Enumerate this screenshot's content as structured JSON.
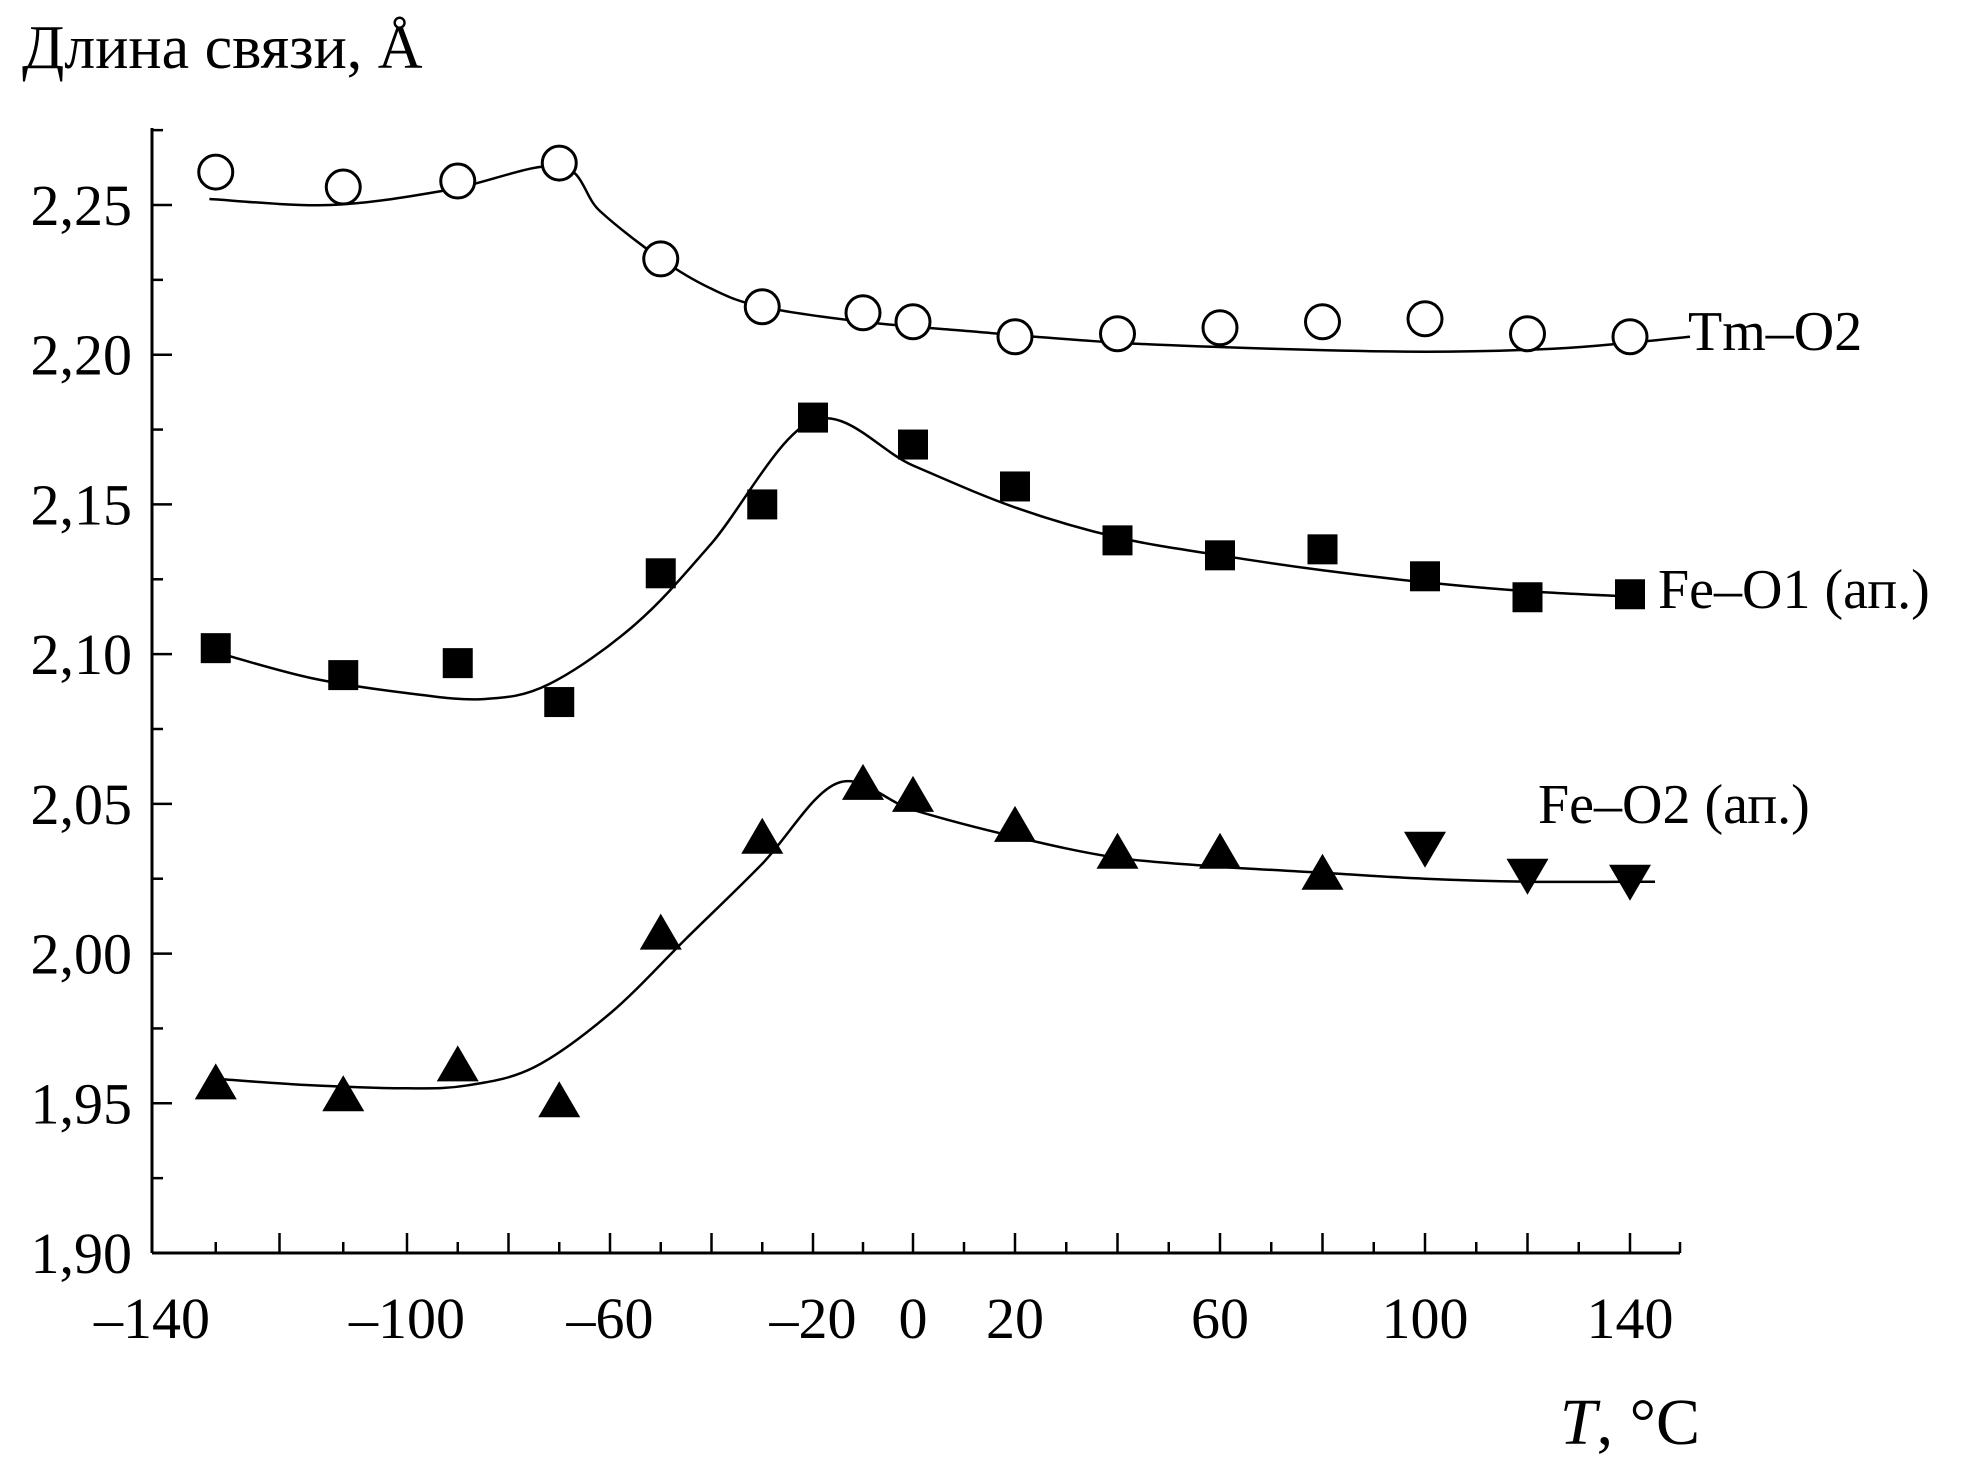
{
  "chart_data": {
    "type": "scatter",
    "ylabel": "Длина связи, Å",
    "xlabel_italic": "T",
    "xlabel_unit": ", °С",
    "xlim": [
      -140,
      150
    ],
    "ylim": [
      1.9,
      2.28
    ],
    "x_ticks": [
      -140,
      -100,
      -60,
      -20,
      0,
      20,
      60,
      100,
      140
    ],
    "x_tick_labels": [
      "–140",
      "–100",
      "–60",
      "–20",
      "0",
      "20",
      "60",
      "100",
      "140"
    ],
    "y_ticks": [
      1.9,
      1.95,
      2.0,
      2.05,
      2.1,
      2.15,
      2.2,
      2.25
    ],
    "y_tick_labels": [
      "1,90",
      "1,95",
      "2,00",
      "2,05",
      "2,10",
      "2,15",
      "2,20",
      "2,25"
    ],
    "grid": false,
    "series": [
      {
        "name": "Tm–O2",
        "marker": "open-circle",
        "points": [
          [
            -130,
            2.261
          ],
          [
            -110,
            2.256
          ],
          [
            -90,
            2.258
          ],
          [
            -70,
            2.264
          ],
          [
            -50,
            2.232
          ],
          [
            -30,
            2.216
          ],
          [
            -10,
            2.214
          ],
          [
            0,
            2.211
          ],
          [
            20,
            2.206
          ],
          [
            40,
            2.207
          ],
          [
            60,
            2.209
          ],
          [
            80,
            2.211
          ],
          [
            100,
            2.212
          ],
          [
            120,
            2.207
          ],
          [
            140,
            2.206
          ]
        ],
        "fit": [
          [
            -131,
            2.252
          ],
          [
            -112,
            2.25
          ],
          [
            -92,
            2.255
          ],
          [
            -70,
            2.263
          ],
          [
            -62,
            2.248
          ],
          [
            -50,
            2.232
          ],
          [
            -40,
            2.222
          ],
          [
            -30,
            2.216
          ],
          [
            -10,
            2.211
          ],
          [
            10,
            2.208
          ],
          [
            40,
            2.204
          ],
          [
            70,
            2.202
          ],
          [
            100,
            2.201
          ],
          [
            125,
            2.202
          ],
          [
            140,
            2.204
          ],
          [
            152,
            2.206
          ]
        ]
      },
      {
        "name": "Fe–O1 (ап.)",
        "marker": "filled-square",
        "points": [
          [
            -130,
            2.102
          ],
          [
            -110,
            2.093
          ],
          [
            -90,
            2.097
          ],
          [
            -70,
            2.084
          ],
          [
            -50,
            2.127
          ],
          [
            -30,
            2.15
          ],
          [
            -20,
            2.179
          ],
          [
            0,
            2.17
          ],
          [
            20,
            2.156
          ],
          [
            40,
            2.138
          ],
          [
            60,
            2.133
          ],
          [
            80,
            2.135
          ],
          [
            100,
            2.126
          ],
          [
            120,
            2.119
          ],
          [
            140,
            2.12
          ]
        ],
        "fit": [
          [
            -129,
            2.1
          ],
          [
            -115,
            2.092
          ],
          [
            -100,
            2.087
          ],
          [
            -85,
            2.085
          ],
          [
            -72,
            2.09
          ],
          [
            -55,
            2.11
          ],
          [
            -40,
            2.137
          ],
          [
            -20,
            2.178
          ],
          [
            0,
            2.163
          ],
          [
            20,
            2.149
          ],
          [
            40,
            2.139
          ],
          [
            60,
            2.133
          ],
          [
            80,
            2.128
          ],
          [
            100,
            2.124
          ],
          [
            120,
            2.121
          ],
          [
            143,
            2.119
          ]
        ]
      },
      {
        "name": "Fe–O2 (ап.)",
        "marker": "filled-triangle-up",
        "points": [
          [
            -130,
            1.957
          ],
          [
            -110,
            1.953
          ],
          [
            -90,
            1.963
          ],
          [
            -70,
            1.951
          ],
          [
            -50,
            2.007
          ],
          [
            -30,
            2.039
          ],
          [
            -10,
            2.057
          ],
          [
            0,
            2.053
          ],
          [
            20,
            2.043
          ],
          [
            40,
            2.034
          ],
          [
            60,
            2.034
          ],
          [
            80,
            2.027
          ]
        ],
        "fit": [
          [
            -129,
            1.958
          ],
          [
            -115,
            1.956
          ],
          [
            -100,
            1.955
          ],
          [
            -88,
            1.956
          ],
          [
            -75,
            1.962
          ],
          [
            -60,
            1.98
          ],
          [
            -45,
            2.005
          ],
          [
            -30,
            2.03
          ],
          [
            -15,
            2.057
          ],
          [
            0,
            2.048
          ],
          [
            20,
            2.039
          ],
          [
            40,
            2.032
          ],
          [
            60,
            2.029
          ],
          [
            80,
            2.027
          ],
          [
            100,
            2.025
          ],
          [
            120,
            2.024
          ],
          [
            145,
            2.024
          ]
        ]
      },
      {
        "name": "",
        "marker": "filled-triangle-down",
        "points": [
          [
            100,
            2.035
          ],
          [
            120,
            2.026
          ],
          [
            140,
            2.024
          ]
        ]
      }
    ],
    "series_labels": [
      "Tm–O2",
      "Fe–O1 (ап.)",
      "Fe–O2 (ап.)"
    ]
  }
}
